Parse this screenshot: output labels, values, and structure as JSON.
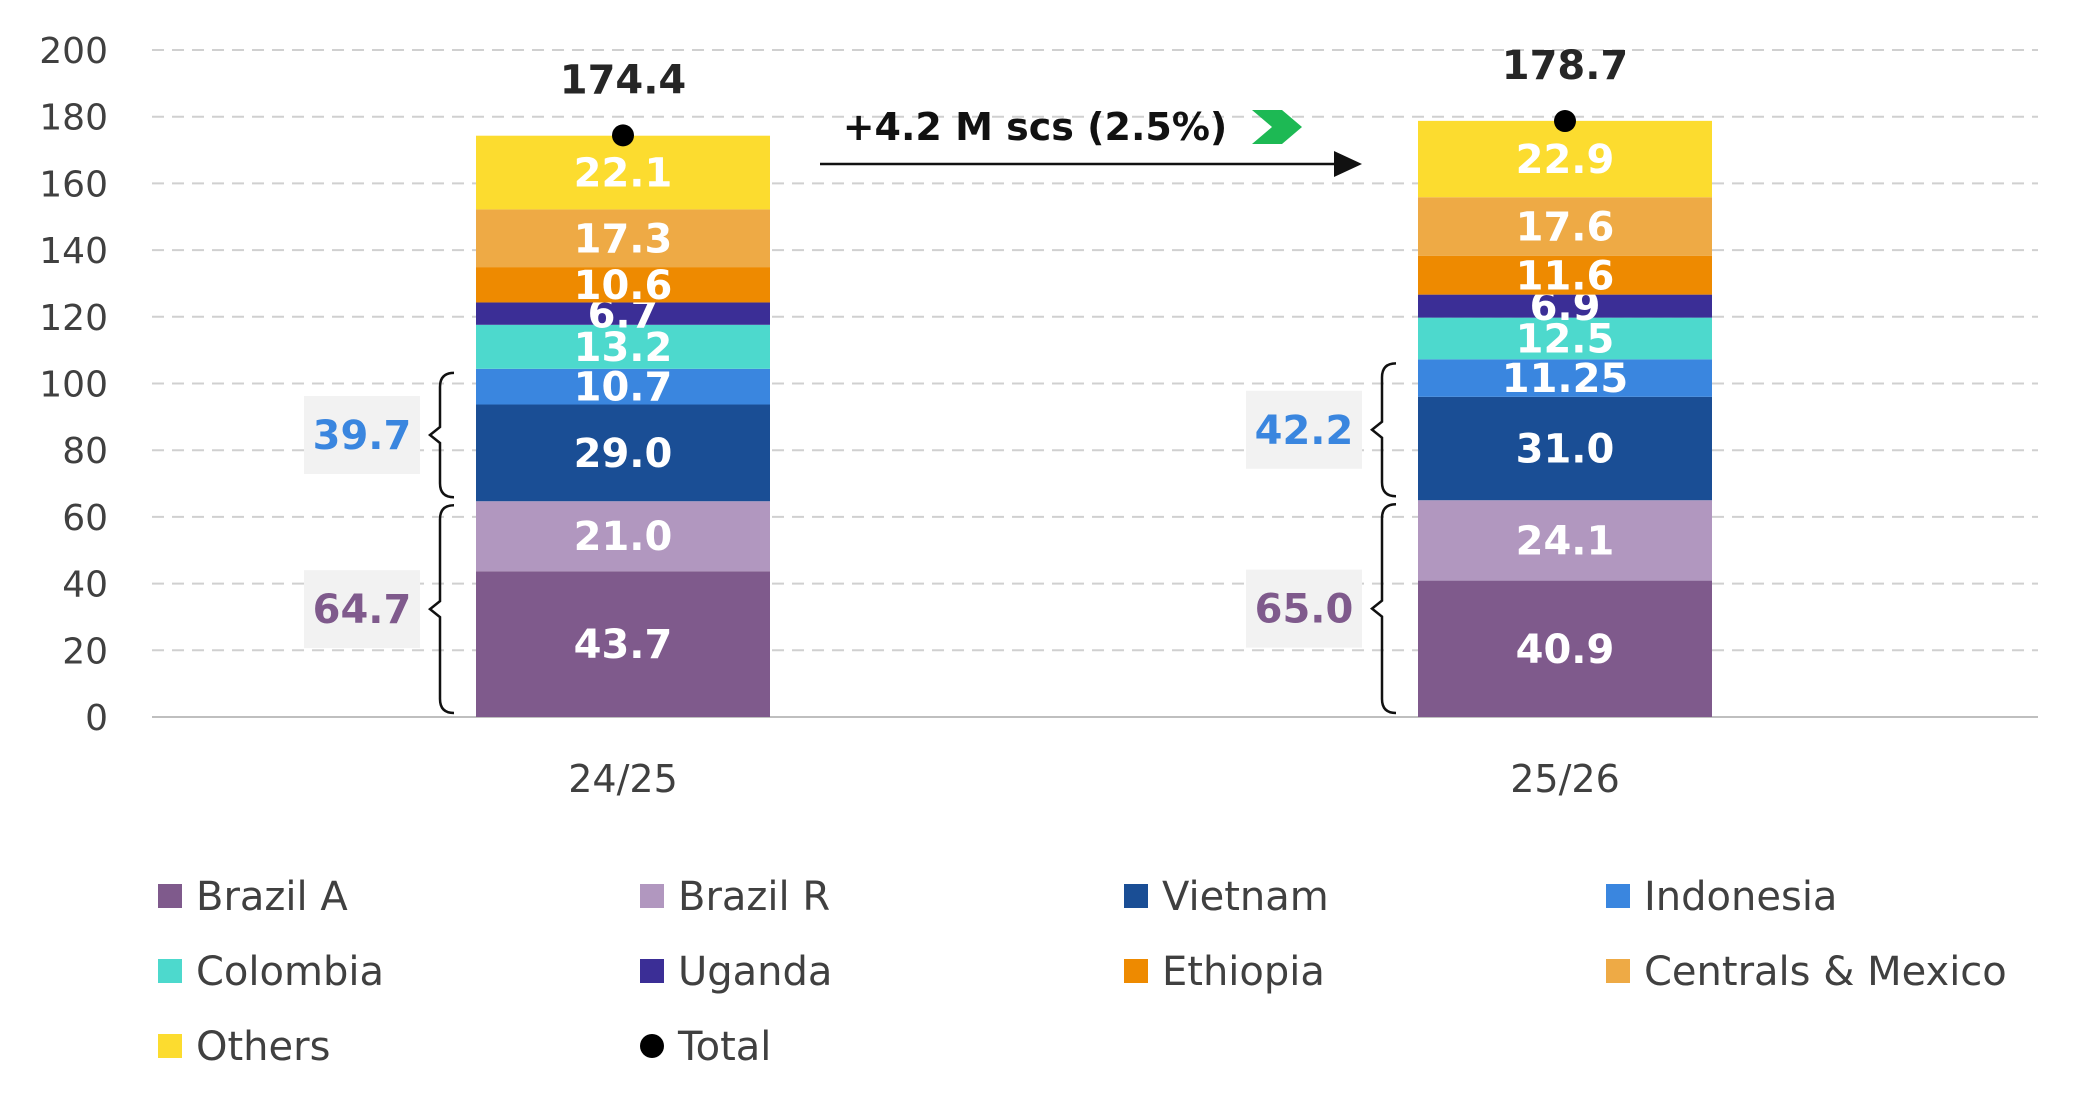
{
  "chart_data": {
    "type": "bar",
    "stacked": true,
    "categories": [
      "24/25",
      "25/26"
    ],
    "series": [
      {
        "name": "Brazil A",
        "color": "#7f5a8c",
        "values": [
          43.7,
          40.9
        ],
        "labels": [
          "43.7",
          "40.9"
        ]
      },
      {
        "name": "Brazil R",
        "color": "#b197bf",
        "values": [
          21.0,
          24.1
        ],
        "labels": [
          "21.0",
          "24.1"
        ]
      },
      {
        "name": "Vietnam",
        "color": "#1a4e95",
        "values": [
          29.0,
          31.0
        ],
        "labels": [
          "29.0",
          "31.0"
        ]
      },
      {
        "name": "Indonesia",
        "color": "#3a86df",
        "values": [
          10.7,
          11.25
        ],
        "labels": [
          "10.7",
          "11.25"
        ]
      },
      {
        "name": "Colombia",
        "color": "#4dd9cd",
        "values": [
          13.2,
          12.5
        ],
        "labels": [
          "13.2",
          "12.5"
        ]
      },
      {
        "name": "Uganda",
        "color": "#3b2e96",
        "values": [
          6.7,
          6.9
        ],
        "labels": [
          "6.7",
          "6.9"
        ]
      },
      {
        "name": "Ethiopia",
        "color": "#ee8a00",
        "values": [
          10.6,
          11.6
        ],
        "labels": [
          "10.6",
          "11.6"
        ]
      },
      {
        "name": "Centrals & Mexico",
        "color": "#eeaa45",
        "values": [
          17.3,
          17.6
        ],
        "labels": [
          "17.3",
          "17.6"
        ]
      },
      {
        "name": "Others",
        "color": "#fcdc2f",
        "values": [
          22.1,
          22.9
        ],
        "labels": [
          "22.1",
          "22.9"
        ]
      }
    ],
    "total": {
      "name": "Total",
      "color": "#000000",
      "values": [
        174.4,
        178.7
      ],
      "labels": [
        "174.4",
        "178.7"
      ]
    },
    "group_annotations": [
      {
        "series": [
          "Brazil A",
          "Brazil R"
        ],
        "color": "#7f5a8c",
        "labels": [
          "64.7",
          "65.0"
        ]
      },
      {
        "series": [
          "Vietnam",
          "Indonesia"
        ],
        "color": "#3a86df",
        "labels": [
          "39.7",
          "42.2"
        ]
      }
    ],
    "change_annotation": {
      "text": "+4.2 M scs (2.5%)",
      "arrow_color": "#1db954"
    },
    "ylim": [
      0,
      200
    ],
    "yticks": [
      0,
      20,
      40,
      60,
      80,
      100,
      120,
      140,
      160,
      180,
      200
    ],
    "grid": true,
    "legend_position": "bottom",
    "title": "",
    "xlabel": "",
    "ylabel": ""
  }
}
